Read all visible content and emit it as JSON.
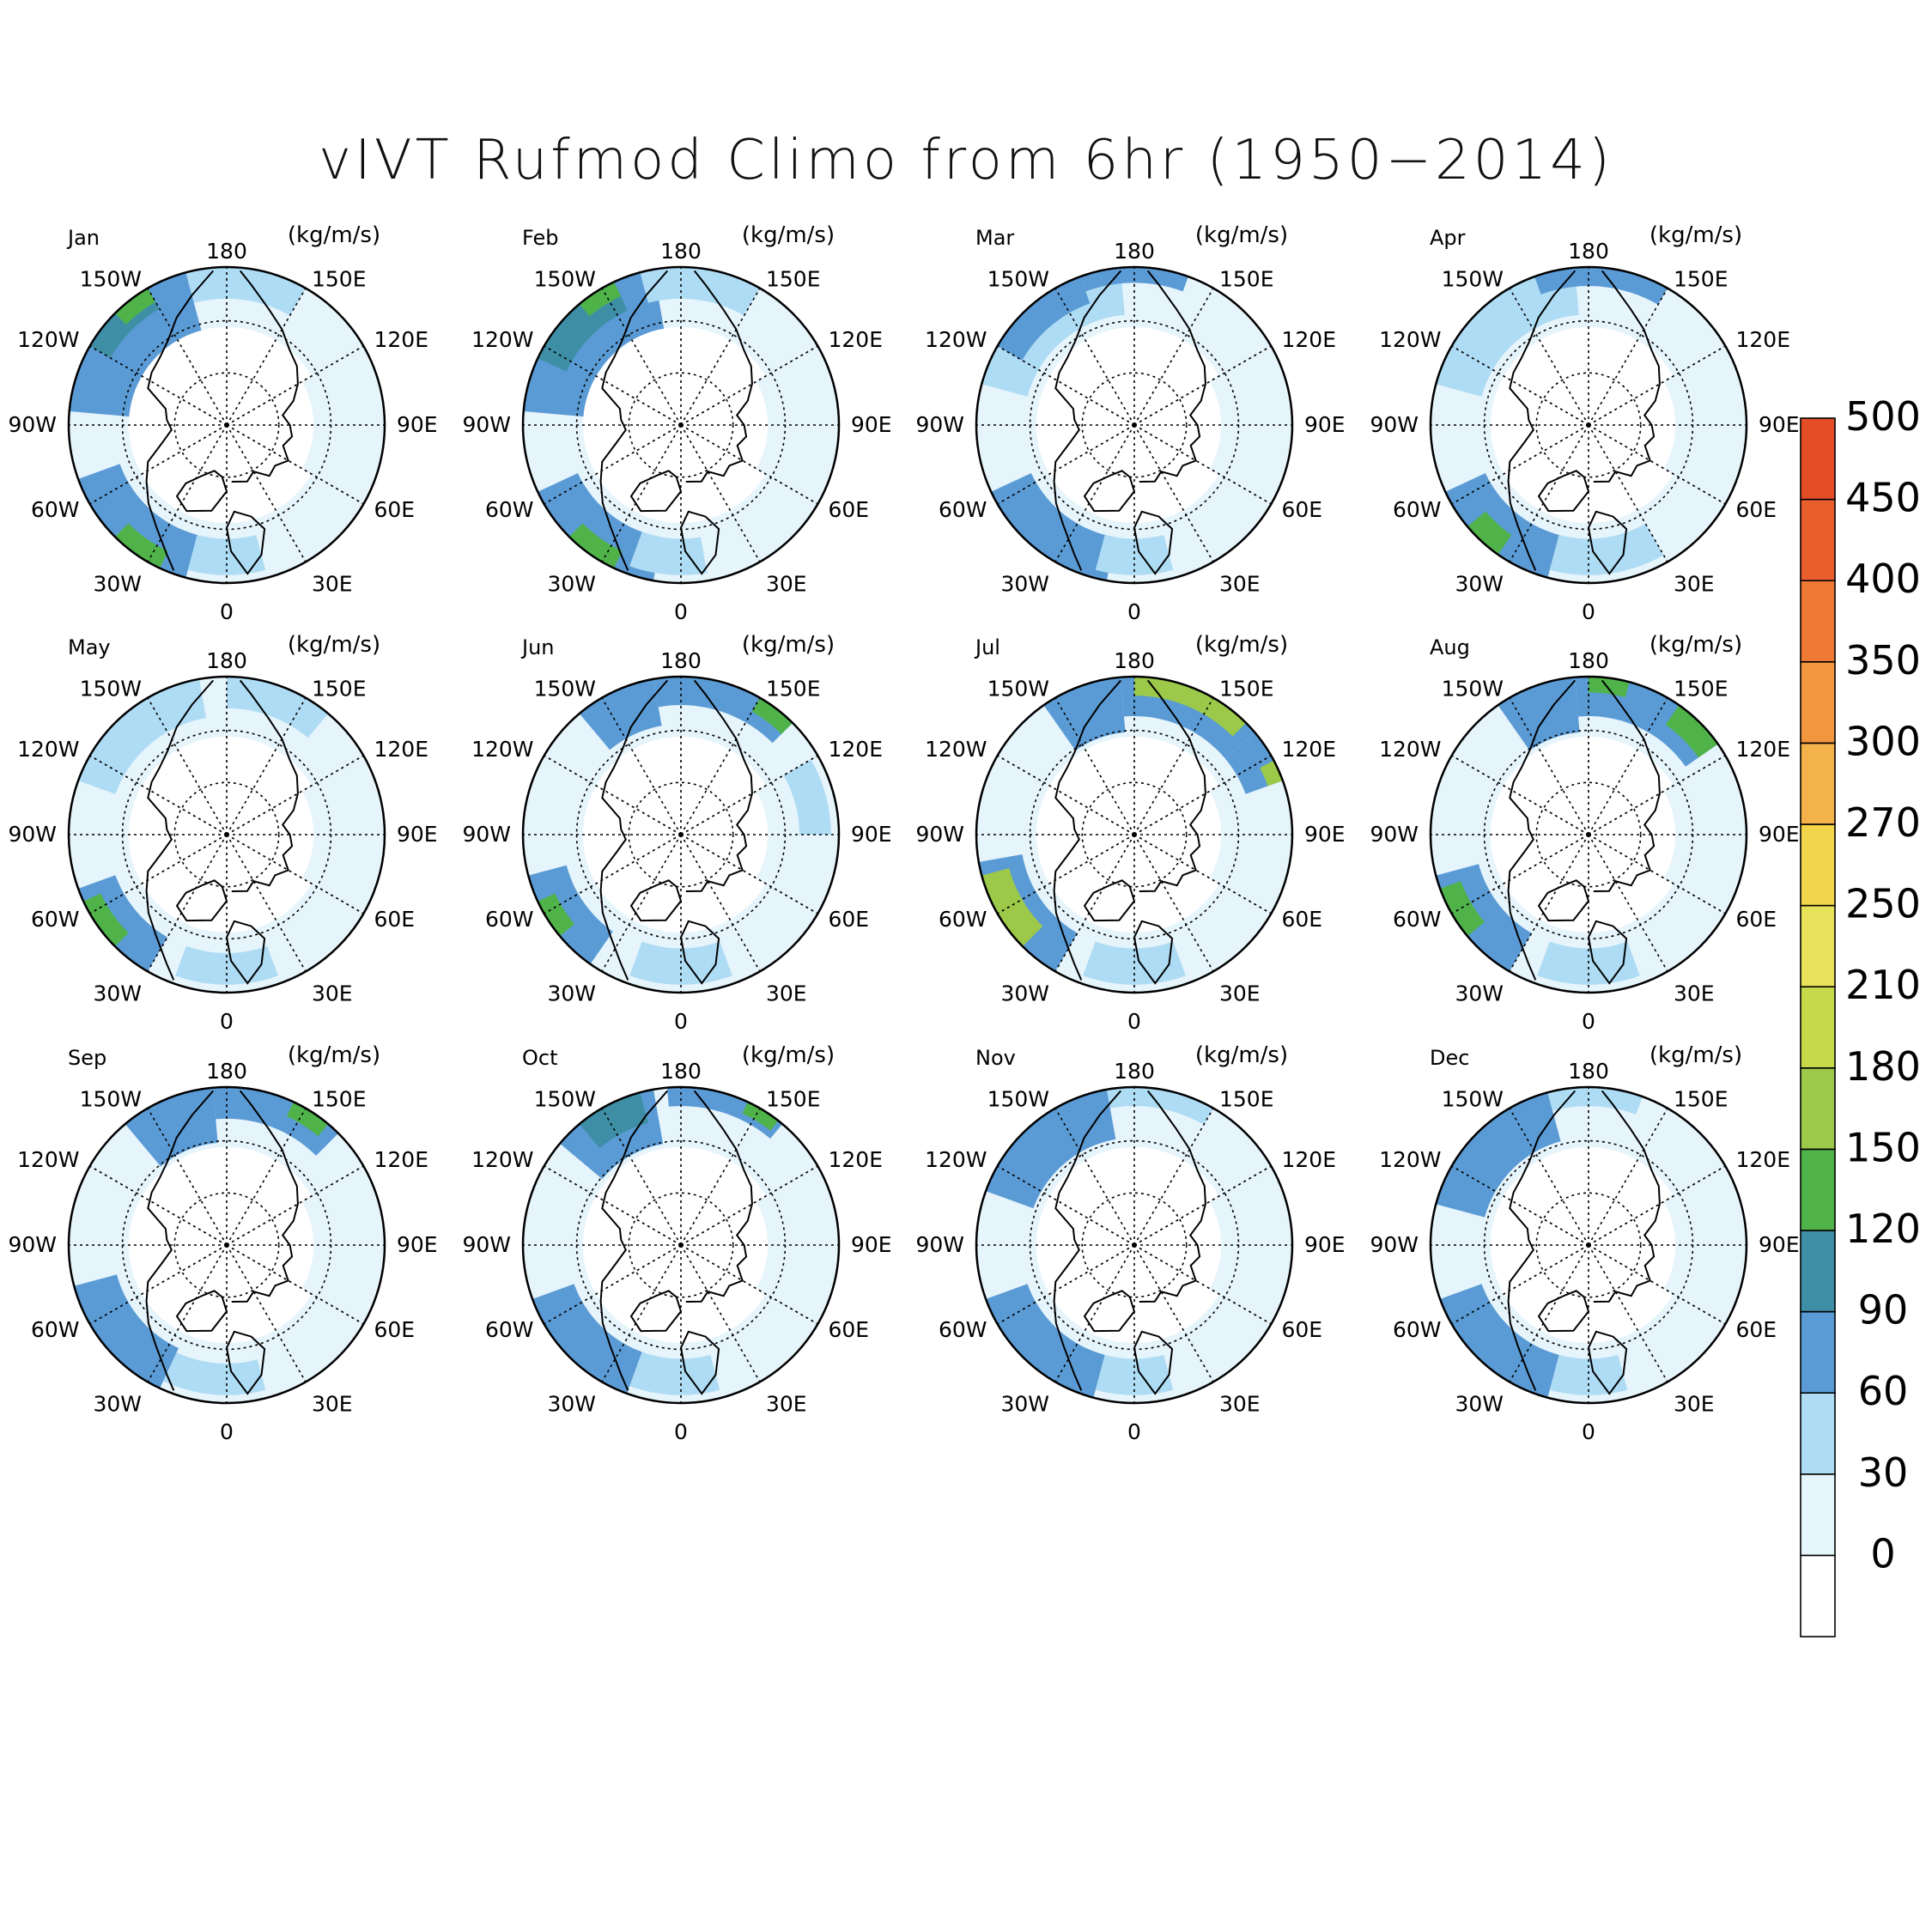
{
  "title": "vIVT Rufmod Climo from 6hr (1950−2014)",
  "unit_label": "(kg/m/s)",
  "panels": [
    {
      "month": "Jan"
    },
    {
      "month": "Feb"
    },
    {
      "month": "Mar"
    },
    {
      "month": "Apr"
    },
    {
      "month": "May"
    },
    {
      "month": "Jun"
    },
    {
      "month": "Jul"
    },
    {
      "month": "Aug"
    },
    {
      "month": "Sep"
    },
    {
      "month": "Oct"
    },
    {
      "month": "Nov"
    },
    {
      "month": "Dec"
    }
  ],
  "longitude_labels": [
    "180",
    "150E",
    "120E",
    "90E",
    "60E",
    "30E",
    "0",
    "30W",
    "60W",
    "90W",
    "120W",
    "150W"
  ],
  "colorbar": {
    "labels": [
      "0",
      "30",
      "60",
      "90",
      "120",
      "150",
      "180",
      "210",
      "250",
      "270",
      "300",
      "350",
      "400",
      "450",
      "500"
    ],
    "colors": [
      "#ffffff",
      "#e6f4fb",
      "#aedcf4",
      "#5b9bd5",
      "#3e8fa6",
      "#4fb34a",
      "#9cc94a",
      "#c5d94a",
      "#e8e15a",
      "#f3d54b",
      "#f4b24a",
      "#f29640",
      "#ef7a35",
      "#ea5e2b",
      "#e34e26"
    ]
  },
  "colors": {
    "coast": "#000000",
    "grid": "#000000"
  }
}
